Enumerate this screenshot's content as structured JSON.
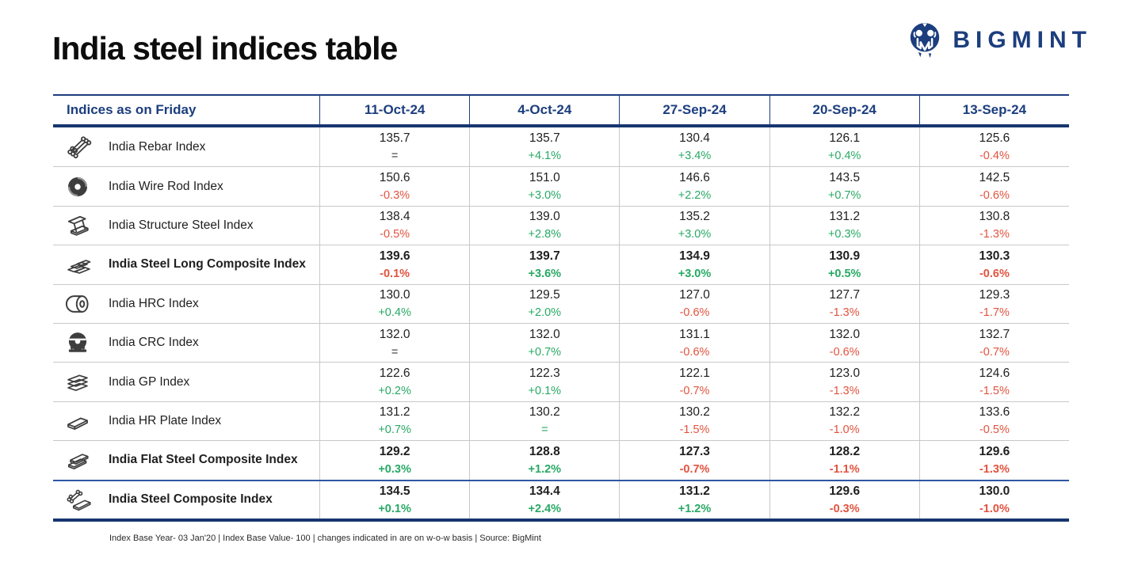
{
  "logo": {
    "text": "BIGMINT",
    "icon": "bigmint-ram-logo",
    "color": "#1c3e7e"
  },
  "colors": {
    "accent_navy": "#1c3e7e",
    "positive_green": "#27a964",
    "negative_red": "#e2533f",
    "neutral_dark": "#3a3a3a"
  },
  "chart_data": {
    "type": "table",
    "title": "India steel indices table",
    "corner_header": "Indices as on Friday",
    "date_columns": [
      "11-Oct-24",
      "4-Oct-24",
      "27-Sep-24",
      "20-Sep-24",
      "13-Sep-24"
    ],
    "rows": [
      {
        "name": "India Rebar Index",
        "icon": "rebar-icon",
        "bold": false,
        "cells": [
          {
            "value": "135.7",
            "change": "=",
            "trend": "neutral"
          },
          {
            "value": "135.7",
            "change": "+4.1%",
            "trend": "pos"
          },
          {
            "value": "130.4",
            "change": "+3.4%",
            "trend": "pos"
          },
          {
            "value": "126.1",
            "change": "+0.4%",
            "trend": "pos"
          },
          {
            "value": "125.6",
            "change": "-0.4%",
            "trend": "neg"
          }
        ]
      },
      {
        "name": "India Wire Rod Index",
        "icon": "wire-rod-coil-icon",
        "bold": false,
        "cells": [
          {
            "value": "150.6",
            "change": "-0.3%",
            "trend": "neg"
          },
          {
            "value": "151.0",
            "change": "+3.0%",
            "trend": "pos"
          },
          {
            "value": "146.6",
            "change": "+2.2%",
            "trend": "pos"
          },
          {
            "value": "143.5",
            "change": "+0.7%",
            "trend": "pos"
          },
          {
            "value": "142.5",
            "change": "-0.6%",
            "trend": "neg"
          }
        ]
      },
      {
        "name": "India Structure Steel Index",
        "icon": "i-beam-icon",
        "bold": false,
        "cells": [
          {
            "value": "138.4",
            "change": "-0.5%",
            "trend": "neg"
          },
          {
            "value": "139.0",
            "change": "+2.8%",
            "trend": "pos"
          },
          {
            "value": "135.2",
            "change": "+3.0%",
            "trend": "pos"
          },
          {
            "value": "131.2",
            "change": "+0.3%",
            "trend": "pos"
          },
          {
            "value": "130.8",
            "change": "-1.3%",
            "trend": "neg"
          }
        ]
      },
      {
        "name": "India Steel Long Composite Index",
        "icon": "steel-bar-stack-icon",
        "bold": true,
        "cells": [
          {
            "value": "139.6",
            "change": "-0.1%",
            "trend": "neg"
          },
          {
            "value": "139.7",
            "change": "+3.6%",
            "trend": "pos"
          },
          {
            "value": "134.9",
            "change": "+3.0%",
            "trend": "pos"
          },
          {
            "value": "130.9",
            "change": "+0.5%",
            "trend": "pos"
          },
          {
            "value": "130.3",
            "change": "-0.6%",
            "trend": "neg"
          }
        ]
      },
      {
        "name": "India HRC Index",
        "icon": "hrc-coil-icon",
        "bold": false,
        "cells": [
          {
            "value": "130.0",
            "change": "+0.4%",
            "trend": "pos"
          },
          {
            "value": "129.5",
            "change": "+2.0%",
            "trend": "pos"
          },
          {
            "value": "127.0",
            "change": "-0.6%",
            "trend": "neg"
          },
          {
            "value": "127.7",
            "change": "-1.3%",
            "trend": "neg"
          },
          {
            "value": "129.3",
            "change": "-1.7%",
            "trend": "neg"
          }
        ]
      },
      {
        "name": "India CRC Index",
        "icon": "crc-coil-icon",
        "bold": false,
        "cells": [
          {
            "value": "132.0",
            "change": "=",
            "trend": "neutral"
          },
          {
            "value": "132.0",
            "change": "+0.7%",
            "trend": "pos"
          },
          {
            "value": "131.1",
            "change": "-0.6%",
            "trend": "neg"
          },
          {
            "value": "132.0",
            "change": "-0.6%",
            "trend": "neg"
          },
          {
            "value": "132.7",
            "change": "-0.7%",
            "trend": "neg"
          }
        ]
      },
      {
        "name": "India GP Index",
        "icon": "sheet-stack-icon",
        "bold": false,
        "cells": [
          {
            "value": "122.6",
            "change": "+0.2%",
            "trend": "pos"
          },
          {
            "value": "122.3",
            "change": "+0.1%",
            "trend": "pos"
          },
          {
            "value": "122.1",
            "change": "-0.7%",
            "trend": "neg"
          },
          {
            "value": "123.0",
            "change": "-1.3%",
            "trend": "neg"
          },
          {
            "value": "124.6",
            "change": "-1.5%",
            "trend": "neg"
          }
        ]
      },
      {
        "name": "India HR Plate Index",
        "icon": "steel-plate-icon",
        "bold": false,
        "cells": [
          {
            "value": "131.2",
            "change": "+0.7%",
            "trend": "pos"
          },
          {
            "value": "130.2",
            "change": "=",
            "trend": "pos"
          },
          {
            "value": "130.2",
            "change": "-1.5%",
            "trend": "neg"
          },
          {
            "value": "132.2",
            "change": "-1.0%",
            "trend": "neg"
          },
          {
            "value": "133.6",
            "change": "-0.5%",
            "trend": "neg"
          }
        ]
      },
      {
        "name": "India Flat Steel Composite Index",
        "icon": "flat-steel-stack-icon",
        "bold": true,
        "cells": [
          {
            "value": "129.2",
            "change": "+0.3%",
            "trend": "pos"
          },
          {
            "value": "128.8",
            "change": "+1.2%",
            "trend": "pos"
          },
          {
            "value": "127.3",
            "change": "-0.7%",
            "trend": "neg"
          },
          {
            "value": "128.2",
            "change": "-1.1%",
            "trend": "neg"
          },
          {
            "value": "129.6",
            "change": "-1.3%",
            "trend": "neg"
          }
        ]
      },
      {
        "name": "India Steel Composite Index",
        "icon": "rods-and-plate-icon",
        "bold": true,
        "accent_top": true,
        "cells": [
          {
            "value": "134.5",
            "change": "+0.1%",
            "trend": "pos"
          },
          {
            "value": "134.4",
            "change": "+2.4%",
            "trend": "pos"
          },
          {
            "value": "131.2",
            "change": "+1.2%",
            "trend": "pos"
          },
          {
            "value": "129.6",
            "change": "-0.3%",
            "trend": "neg"
          },
          {
            "value": "130.0",
            "change": "-1.0%",
            "trend": "neg"
          }
        ]
      }
    ],
    "footnote": "Index Base Year- 03 Jan'20 | Index Base Value- 100 | changes indicated in are on w-o-w basis | Source: BigMint"
  }
}
